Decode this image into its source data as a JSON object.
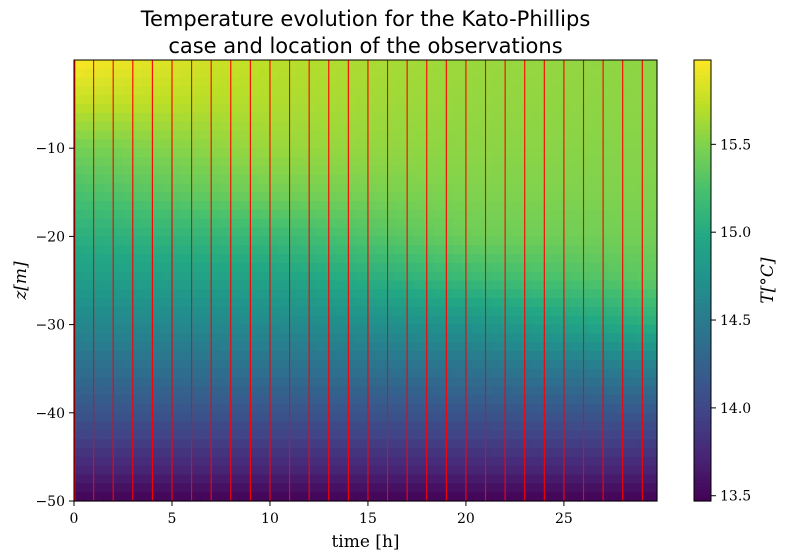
{
  "chart_data": {
    "type": "heatmap",
    "title_lines": [
      "Temperature evolution for the Kato-Phillips",
      "case and location of the observations"
    ],
    "xlabel": "time [h]",
    "ylabel": "z[m]",
    "colorbar_label": "T[°C]",
    "x_range": [
      0,
      29.75
    ],
    "y_range": [
      -50,
      0
    ],
    "x_ticks": [
      0,
      5,
      10,
      15,
      20,
      25
    ],
    "x_tick_labels": [
      "0",
      "5",
      "10",
      "15",
      "20",
      "25"
    ],
    "y_ticks": [
      -10,
      -20,
      -30,
      -40,
      -50
    ],
    "y_tick_labels": [
      "−10",
      "−20",
      "−30",
      "−40",
      "−50"
    ],
    "colorbar_range": [
      13.47,
      15.98
    ],
    "colorbar_ticks": [
      13.5,
      14.0,
      14.5,
      15.0,
      15.5
    ],
    "colorbar_tick_labels": [
      "13.5",
      "14.0",
      "14.5",
      "15.0",
      "15.5"
    ],
    "colormap": "viridis",
    "grid": false,
    "observation_times_h": [
      0,
      1,
      2,
      3,
      4,
      5,
      6,
      7,
      8,
      9,
      10,
      11,
      12,
      13,
      14,
      15,
      16,
      17,
      18,
      19,
      20,
      21,
      22,
      23,
      24,
      25,
      26,
      27,
      28,
      29
    ],
    "observation_line_color": "#ff0000",
    "approx_profiles": [
      {
        "time_h": 0,
        "z": [
          0,
          -5,
          -10,
          -15,
          -20,
          -25,
          -30,
          -35,
          -40,
          -45,
          -50
        ],
        "T": [
          15.98,
          15.75,
          15.45,
          15.25,
          15.05,
          14.85,
          14.62,
          14.38,
          14.12,
          13.82,
          13.48
        ]
      },
      {
        "time_h": 10,
        "z": [
          0,
          -5,
          -10,
          -15,
          -20,
          -25,
          -30,
          -35,
          -40,
          -45,
          -50
        ],
        "T": [
          15.72,
          15.68,
          15.6,
          15.45,
          15.15,
          14.9,
          14.65,
          14.4,
          14.12,
          13.82,
          13.48
        ]
      },
      {
        "time_h": 20,
        "z": [
          0,
          -5,
          -10,
          -15,
          -20,
          -25,
          -30,
          -35,
          -40,
          -45,
          -50
        ],
        "T": [
          15.6,
          15.58,
          15.55,
          15.5,
          15.42,
          15.15,
          14.75,
          14.42,
          14.12,
          13.82,
          13.48
        ]
      },
      {
        "time_h": 29.75,
        "z": [
          0,
          -5,
          -10,
          -15,
          -20,
          -25,
          -30,
          -35,
          -40,
          -45,
          -50
        ],
        "T": [
          15.55,
          15.54,
          15.52,
          15.5,
          15.45,
          15.35,
          15.05,
          14.55,
          14.15,
          13.82,
          13.48
        ]
      }
    ]
  }
}
